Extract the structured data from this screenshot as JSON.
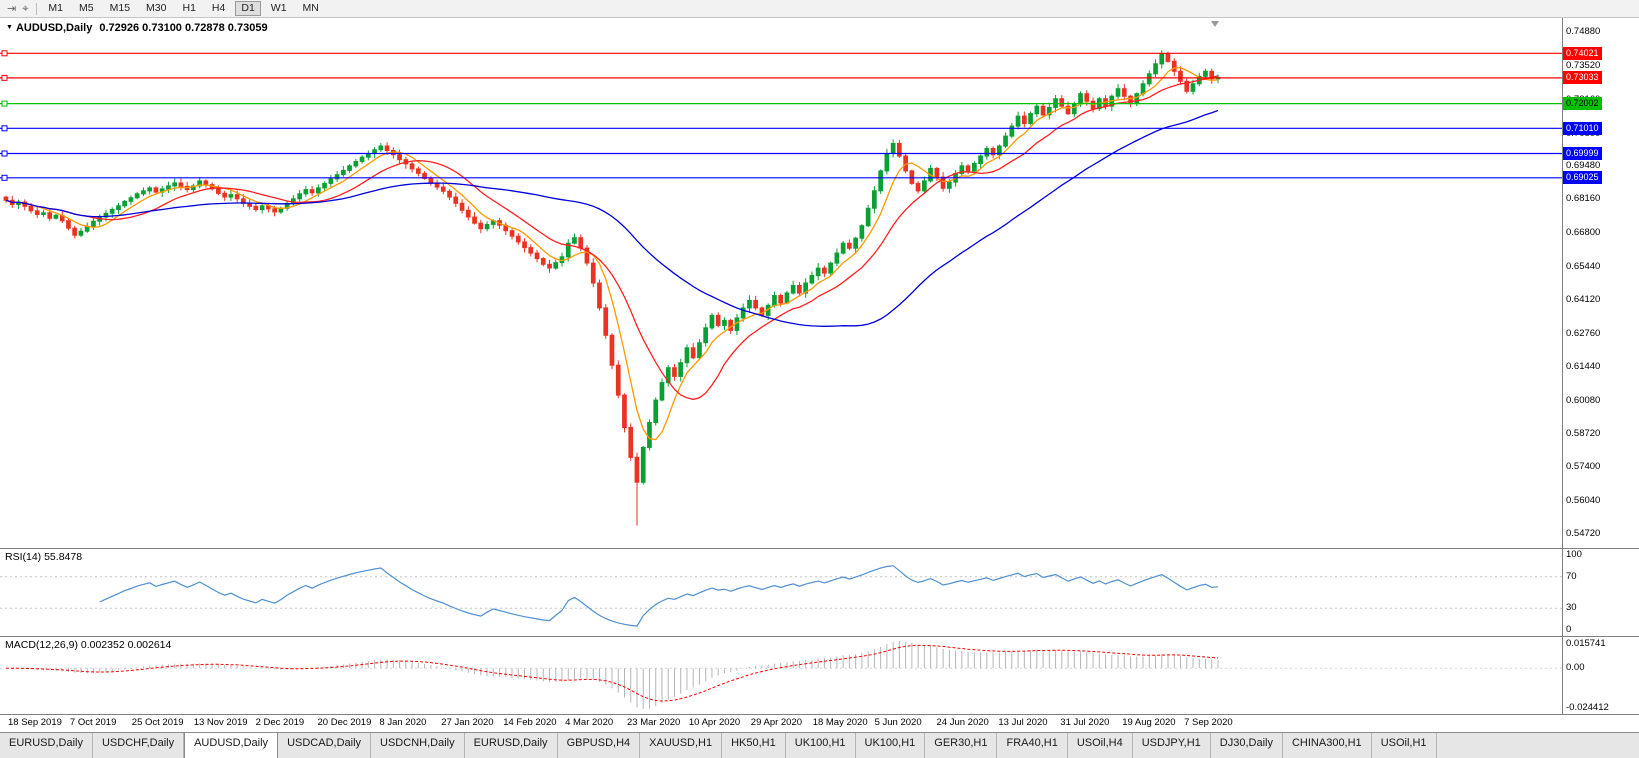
{
  "toolbar": {
    "timeframes": [
      "M1",
      "M5",
      "M15",
      "M30",
      "H1",
      "H4",
      "D1",
      "W1",
      "MN"
    ],
    "active_timeframe": "D1"
  },
  "icons": {
    "chart_shift": "⇥",
    "crosshair": "⌖",
    "dropdown": "▼"
  },
  "chart": {
    "symbol_line": {
      "symbol": "AUDUSD,Daily",
      "values": "0.72926 0.73100 0.72878 0.73059"
    }
  },
  "indicators": {
    "rsi_label": "RSI(14) 55.8478",
    "macd_label": "MACD(12,26,9) 0.002352 0.002614"
  },
  "chart_data": {
    "type": "candlestick",
    "symbol": "AUDUSD",
    "timeframe": "Daily",
    "ohlc_display": {
      "open": "0.72926",
      "high": "0.73100",
      "low": "0.72878",
      "close": "0.73059"
    },
    "price_axis_labels": [
      "0.74880",
      "0.73520",
      "0.72160",
      "0.70800",
      "0.69480",
      "0.68160",
      "0.66800",
      "0.65440",
      "0.64120",
      "0.62760",
      "0.61440",
      "0.60080",
      "0.58720",
      "0.57400",
      "0.56040",
      "0.54720"
    ],
    "price_range": {
      "top": 0.7544,
      "bottom": 0.5416
    },
    "x_labels": [
      "18 Sep 2019",
      "7 Oct 2019",
      "25 Oct 2019",
      "13 Nov 2019",
      "2 Dec 2019",
      "20 Dec 2019",
      "8 Jan 2020",
      "27 Jan 2020",
      "14 Feb 2020",
      "4 Mar 2020",
      "23 Mar 2020",
      "10 Apr 2020",
      "29 Apr 2020",
      "18 May 2020",
      "5 Jun 2020",
      "24 Jun 2020",
      "13 Jul 2020",
      "31 Jul 2020",
      "19 Aug 2020",
      "7 Sep 2020"
    ],
    "first_open": 0.6825,
    "closes": [
      0.6812,
      0.6795,
      0.6805,
      0.6788,
      0.677,
      0.6755,
      0.6762,
      0.674,
      0.6752,
      0.673,
      0.67,
      0.6672,
      0.6688,
      0.6705,
      0.6728,
      0.6745,
      0.676,
      0.6775,
      0.679,
      0.6808,
      0.6822,
      0.6838,
      0.685,
      0.6862,
      0.6845,
      0.6858,
      0.687,
      0.6882,
      0.6868,
      0.6855,
      0.687,
      0.689,
      0.6875,
      0.6858,
      0.684,
      0.6825,
      0.6835,
      0.6818,
      0.68,
      0.6788,
      0.6775,
      0.679,
      0.6778,
      0.6765,
      0.678,
      0.68,
      0.6818,
      0.6838,
      0.6855,
      0.6842,
      0.6862,
      0.688,
      0.6898,
      0.6915,
      0.6932,
      0.695,
      0.6968,
      0.6985,
      0.7,
      0.7015,
      0.703,
      0.7012,
      0.6995,
      0.6975,
      0.6958,
      0.6938,
      0.692,
      0.69,
      0.6882,
      0.6865,
      0.6848,
      0.6825,
      0.68,
      0.6772,
      0.6745,
      0.672,
      0.6698,
      0.6715,
      0.673,
      0.6712,
      0.669,
      0.6668,
      0.6645,
      0.6622,
      0.66,
      0.6578,
      0.6555,
      0.654,
      0.6562,
      0.6585,
      0.664,
      0.6662,
      0.662,
      0.656,
      0.648,
      0.638,
      0.627,
      0.615,
      0.603,
      0.59,
      0.578,
      0.568,
      0.582,
      0.592,
      0.601,
      0.608,
      0.614,
      0.6105,
      0.616,
      0.622,
      0.618,
      0.624,
      0.63,
      0.635,
      0.631,
      0.633,
      0.629,
      0.634,
      0.638,
      0.641,
      0.638,
      0.635,
      0.639,
      0.643,
      0.64,
      0.644,
      0.647,
      0.644,
      0.648,
      0.651,
      0.654,
      0.652,
      0.656,
      0.66,
      0.664,
      0.662,
      0.666,
      0.671,
      0.678,
      0.685,
      0.693,
      0.7,
      0.704,
      0.699,
      0.693,
      0.688,
      0.685,
      0.689,
      0.694,
      0.6905,
      0.686,
      0.6885,
      0.692,
      0.695,
      0.693,
      0.696,
      0.699,
      0.702,
      0.6995,
      0.703,
      0.707,
      0.711,
      0.715,
      0.712,
      0.716,
      0.719,
      0.7155,
      0.7185,
      0.722,
      0.719,
      0.716,
      0.72,
      0.724,
      0.721,
      0.718,
      0.722,
      0.719,
      0.723,
      0.726,
      0.723,
      0.72,
      0.724,
      0.728,
      0.732,
      0.736,
      0.74,
      0.737,
      0.733,
      0.729,
      0.725,
      0.728,
      0.731,
      0.733,
      0.73,
      0.7306
    ],
    "crash_low": {
      "index": 101,
      "low": 0.5506
    },
    "horizontal_lines": [
      {
        "price": 0.74021,
        "label": "0.74021",
        "color": "#ff0000",
        "text": "#ffffff"
      },
      {
        "price": 0.73033,
        "label": "0.73033",
        "color": "#ff0000",
        "text": "#ffffff"
      },
      {
        "price": 0.72002,
        "label": "0.72002",
        "color": "#00c000",
        "text": "#000000"
      },
      {
        "price": 0.7101,
        "label": "0.71010",
        "color": "#0000ff",
        "text": "#ffffff"
      },
      {
        "price": 0.69999,
        "label": "0.69999",
        "color": "#0000ff",
        "text": "#ffffff"
      },
      {
        "price": 0.69025,
        "label": "0.69025",
        "color": "#0000ff",
        "text": "#ffffff"
      }
    ],
    "moving_averages": [
      {
        "period": 6,
        "color": "#ff9900"
      },
      {
        "period": 14,
        "color": "#ff2020"
      },
      {
        "period": 45,
        "color": "#0000dd"
      }
    ],
    "candle_up_color": "#09a134",
    "candle_down_color": "#ea3323",
    "rsi": {
      "period": 14,
      "levels": [
        "100",
        "70",
        "30",
        "0"
      ],
      "line_color": "#4f8fd0",
      "current": "55.8478"
    },
    "macd": {
      "fast": 12,
      "slow": 26,
      "signal_period": 9,
      "axis_labels": [
        "0.015741",
        "0.00",
        "-0.024412"
      ],
      "hist_color": "#b4b4b4",
      "signal_color": "#ff0000",
      "current": "0.002352 0.002614"
    }
  },
  "tabs": {
    "active_index": 2,
    "items": [
      "EURUSD,Daily",
      "USDCHF,Daily",
      "AUDUSD,Daily",
      "USDCAD,Daily",
      "USDCNH,Daily",
      "EURUSD,Daily",
      "GBPUSD,H4",
      "XAUUSD,H1",
      "HK50,H1",
      "UK100,H1",
      "UK100,H1",
      "GER30,H1",
      "FRA40,H1",
      "USOil,H4",
      "USDJPY,H1",
      "DJ30,Daily",
      "CHINA300,H1",
      "USOil,H1"
    ]
  }
}
